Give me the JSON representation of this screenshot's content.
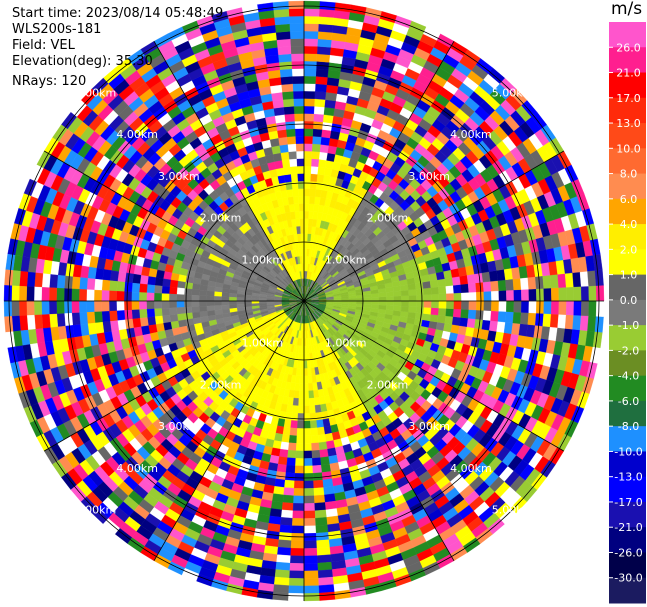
{
  "header": {
    "start_time": "Start time: 2023/08/14 05:48:49",
    "instrument": "WLS200s-181",
    "field": "Field: VEL",
    "elevation": "Elevation(deg): 35.30",
    "nrays": "NRays: 120"
  },
  "colorbar": {
    "unit": "m/s",
    "labels": [
      "26.0",
      "21.0",
      "17.0",
      "13.0",
      "10.0",
      "8.0",
      "6.0",
      "4.0",
      "2.0",
      "1.0",
      "0.0",
      "-1.0",
      "-2.0",
      "-4.0",
      "-6.0",
      "-8.0",
      "-10.0",
      "-13.0",
      "-17.0",
      "-21.0",
      "-26.0",
      "-30.0"
    ],
    "colors": [
      "#ff55cc",
      "#ff1f8f",
      "#ff0000",
      "#ff2a0a",
      "#ff4a18",
      "#ff6a30",
      "#ff8c50",
      "#ffa500",
      "#ffee00",
      "#ffff00",
      "#666666",
      "#7a7a7a",
      "#99cc33",
      "#6b8e23",
      "#228b22",
      "#1f6f3f",
      "#1e90ff",
      "#0000cd",
      "#0000ff",
      "#1a10b0",
      "#000080",
      "#00004a",
      "#1b1b60"
    ]
  },
  "chart_data": {
    "type": "ppi",
    "field": "VEL",
    "units": "m/s",
    "n_rays": 120,
    "range_ring_labels": [
      "1.00km",
      "2.00km",
      "3.00km",
      "4.00km",
      "5.00km"
    ],
    "range_ring_km": [
      1,
      2,
      3,
      4,
      5
    ],
    "colorscale_bounds": [
      26,
      21,
      17,
      13,
      10,
      8,
      6,
      4,
      2,
      1,
      0,
      -1,
      -2,
      -4,
      -6,
      -8,
      -10,
      -13,
      -17,
      -21,
      -26,
      -30
    ],
    "near_field_sectors": [
      {
        "azimuth_from_deg": 0,
        "azimuth_to_deg": 60,
        "dominant_color": "yellow/gray",
        "velocity_range": [
          -1,
          4
        ]
      },
      {
        "azimuth_from_deg": 60,
        "azimuth_to_deg": 180,
        "dominant_color": "green",
        "velocity_range": [
          -4,
          -1
        ]
      },
      {
        "azimuth_from_deg": 180,
        "azimuth_to_deg": 270,
        "dominant_color": "gray",
        "velocity_range": [
          -1,
          1
        ]
      },
      {
        "azimuth_from_deg": 270,
        "azimuth_to_deg": 360,
        "dominant_color": "yellow",
        "velocity_range": [
          1,
          4
        ]
      }
    ],
    "far_field": "noise (random values across the full scale)"
  }
}
